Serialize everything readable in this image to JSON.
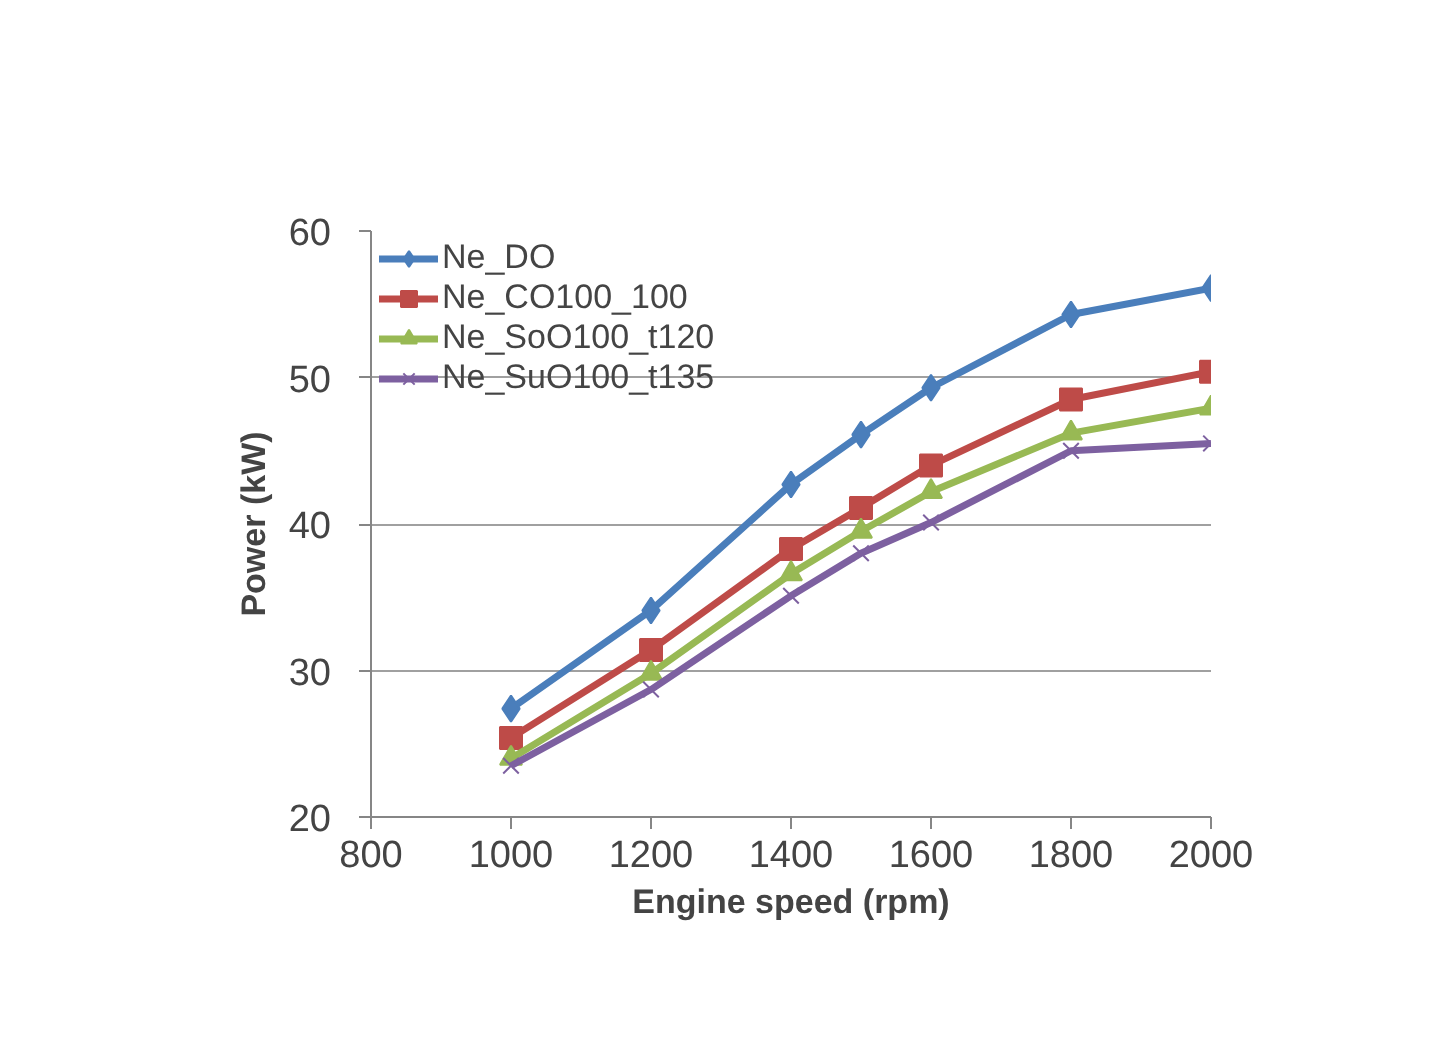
{
  "chart_data": {
    "type": "line",
    "xlabel": "Engine speed (rpm)",
    "ylabel": "Power (kW)",
    "x": [
      1000,
      1200,
      1400,
      1500,
      1600,
      1800,
      2000
    ],
    "xlim": [
      800,
      2000
    ],
    "xticks": [
      800,
      1000,
      1200,
      1400,
      1600,
      1800,
      2000
    ],
    "ylim": [
      20,
      60
    ],
    "yticks": [
      20,
      30,
      40,
      50,
      60
    ],
    "grid": "y",
    "legend": "top left",
    "line_style": "solid",
    "series": [
      {
        "name": "Ne_DO",
        "color": "#4a7ebb",
        "marker": "diamond",
        "values": [
          27.4,
          34.1,
          42.7,
          46.1,
          49.3,
          54.3,
          56.1
        ]
      },
      {
        "name": "Ne_CO100_100",
        "color": "#be4b48",
        "marker": "square",
        "values": [
          25.4,
          31.4,
          38.3,
          41.1,
          44.0,
          48.5,
          50.4
        ]
      },
      {
        "name": "Ne_SoO100_t120",
        "color": "#98b954",
        "marker": "triangle",
        "values": [
          24.0,
          29.8,
          36.6,
          39.5,
          42.2,
          46.2,
          47.9
        ]
      },
      {
        "name": "Ne_SuO100_t135",
        "color": "#7d60a0",
        "marker": "cross",
        "values": [
          23.5,
          28.7,
          35.1,
          38.0,
          40.1,
          45.0,
          45.5
        ]
      }
    ]
  }
}
